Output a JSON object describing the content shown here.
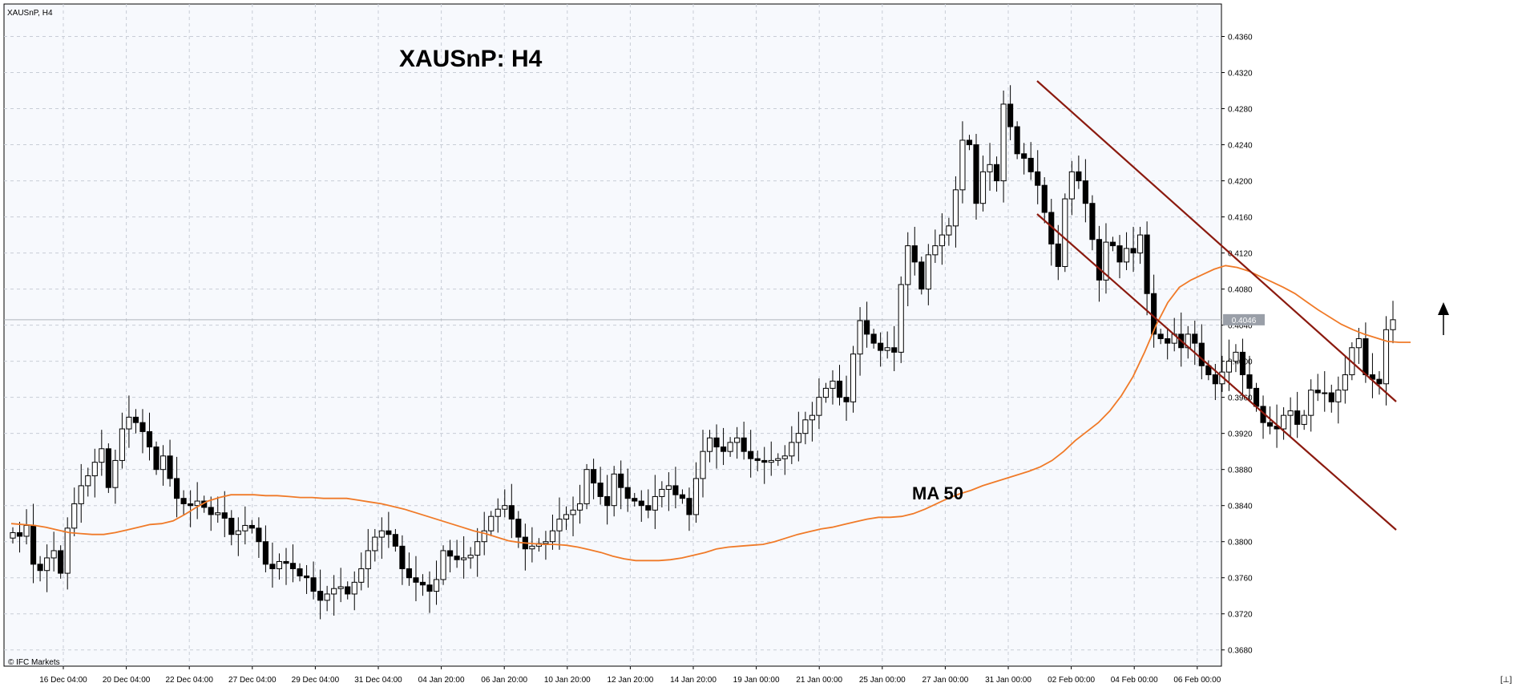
{
  "window": {
    "symbol_label": "XAUSnP, H4",
    "corner_glyph": "[⊥]",
    "brand": "© IFC Markets"
  },
  "colors": {
    "background": "#ffffff",
    "plot_background": "#f7f9fd",
    "grid": "#c8cdd6",
    "ma_line": "#f07a28",
    "channel": "#8b1a0f",
    "current_price_line": "#b0b4bb",
    "current_price_tag": "#9a9fa8",
    "candle_body_up": "#ffffff",
    "candle_body_down": "#000000"
  },
  "chart_data": {
    "type": "candlestick",
    "title": "XAUSnP: H4",
    "symbol": "XAUSnP",
    "timeframe": "H4",
    "x_tick_labels": [
      "16 Dec 04:00",
      "20 Dec 04:00",
      "22 Dec 04:00",
      "27 Dec 04:00",
      "29 Dec 04:00",
      "31 Dec 04:00",
      "04 Jan 20:00",
      "06 Jan 20:00",
      "10 Jan 20:00",
      "12 Jan 20:00",
      "14 Jan 20:00",
      "19 Jan 00:00",
      "21 Jan 00:00",
      "25 Jan 00:00",
      "27 Jan 00:00",
      "31 Jan 00:00",
      "02 Feb 00:00",
      "04 Feb 00:00",
      "06 Feb 00:00"
    ],
    "y_tick_labels": [
      "0.4360",
      "0.4320",
      "0.4280",
      "0.4240",
      "0.4200",
      "0.4160",
      "0.4120",
      "0.4080",
      "0.4040",
      "0.4000",
      "0.3960",
      "0.3920",
      "0.3880",
      "0.3840",
      "0.3800",
      "0.3760",
      "0.3720",
      "0.3680"
    ],
    "ylim": [
      0.3662,
      0.4396
    ],
    "grid": true,
    "current_price": 0.4046,
    "current_price_label": "0.4046",
    "ma_label": "MA 50",
    "indicators": [
      "MA 50",
      "descending channel",
      "up arrow"
    ],
    "price_path": [
      0.381,
      0.3806,
      0.3818,
      0.3775,
      0.3768,
      0.3782,
      0.379,
      0.3765,
      0.3815,
      0.3842,
      0.3862,
      0.3873,
      0.3888,
      0.3903,
      0.386,
      0.389,
      0.3925,
      0.3938,
      0.3932,
      0.3922,
      0.3905,
      0.388,
      0.3895,
      0.387,
      0.3848,
      0.3842,
      0.384,
      0.3845,
      0.3838,
      0.383,
      0.3832,
      0.3826,
      0.3808,
      0.3812,
      0.3818,
      0.3815,
      0.38,
      0.3775,
      0.377,
      0.3778,
      0.3776,
      0.377,
      0.3762,
      0.376,
      0.3745,
      0.3735,
      0.3742,
      0.3748,
      0.375,
      0.3742,
      0.3755,
      0.377,
      0.379,
      0.3805,
      0.3812,
      0.3808,
      0.3795,
      0.377,
      0.376,
      0.3755,
      0.3752,
      0.3745,
      0.3758,
      0.379,
      0.3784,
      0.378,
      0.3782,
      0.3785,
      0.38,
      0.3812,
      0.3828,
      0.3836,
      0.384,
      0.3825,
      0.3805,
      0.3792,
      0.3795,
      0.3798,
      0.38,
      0.3812,
      0.3825,
      0.383,
      0.3835,
      0.3842,
      0.388,
      0.3865,
      0.385,
      0.384,
      0.3875,
      0.386,
      0.3848,
      0.3845,
      0.384,
      0.3835,
      0.385,
      0.3858,
      0.3862,
      0.3852,
      0.3848,
      0.383,
      0.387,
      0.39,
      0.3915,
      0.3905,
      0.39,
      0.391,
      0.3915,
      0.39,
      0.3892,
      0.389,
      0.3888,
      0.389,
      0.3892,
      0.3895,
      0.391,
      0.392,
      0.3935,
      0.394,
      0.396,
      0.397,
      0.3978,
      0.396,
      0.3955,
      0.4008,
      0.4045,
      0.403,
      0.402,
      0.4012,
      0.4015,
      0.401,
      0.4085,
      0.4128,
      0.411,
      0.408,
      0.4118,
      0.4128,
      0.414,
      0.415,
      0.419,
      0.4245,
      0.424,
      0.4175,
      0.421,
      0.4218,
      0.42,
      0.4285,
      0.426,
      0.423,
      0.4225,
      0.421,
      0.4195,
      0.4165,
      0.413,
      0.4105,
      0.418,
      0.421,
      0.42,
      0.4175,
      0.4135,
      0.409,
      0.4132,
      0.4128,
      0.411,
      0.4125,
      0.412,
      0.414,
      0.4075,
      0.403,
      0.4025,
      0.402,
      0.403,
      0.4015,
      0.403,
      0.402,
      0.3995,
      0.3985,
      0.3975,
      0.3988,
      0.4,
      0.401,
      0.3985,
      0.397,
      0.395,
      0.3932,
      0.3928,
      0.3925,
      0.394,
      0.3945,
      0.393,
      0.394,
      0.3968,
      0.3965,
      0.3965,
      0.3955,
      0.3968,
      0.3985,
      0.4015,
      0.4025,
      0.3985,
      0.398,
      0.3975,
      0.4035,
      0.4046
    ],
    "ma50_path": [
      0.382,
      0.3819,
      0.3818,
      0.3816,
      0.3813,
      0.381,
      0.3809,
      0.3808,
      0.3808,
      0.381,
      0.3813,
      0.3816,
      0.3819,
      0.382,
      0.3823,
      0.383,
      0.3838,
      0.3845,
      0.3849,
      0.3852,
      0.3852,
      0.3852,
      0.3851,
      0.3851,
      0.385,
      0.3849,
      0.3849,
      0.3848,
      0.3848,
      0.3848,
      0.3846,
      0.3844,
      0.3842,
      0.3839,
      0.3836,
      0.3832,
      0.3828,
      0.3824,
      0.382,
      0.3816,
      0.3812,
      0.3809,
      0.3805,
      0.3801,
      0.3799,
      0.3798,
      0.3797,
      0.3797,
      0.3796,
      0.3794,
      0.3791,
      0.3788,
      0.3784,
      0.3781,
      0.3779,
      0.3779,
      0.3779,
      0.378,
      0.3782,
      0.3785,
      0.3788,
      0.3792,
      0.3794,
      0.3795,
      0.3796,
      0.3797,
      0.38,
      0.3804,
      0.3808,
      0.3811,
      0.3814,
      0.3816,
      0.3819,
      0.3822,
      0.3825,
      0.3827,
      0.3827,
      0.3828,
      0.3831,
      0.3836,
      0.3842,
      0.3848,
      0.3853,
      0.3857,
      0.3862,
      0.3866,
      0.387,
      0.3874,
      0.3878,
      0.3883,
      0.389,
      0.39,
      0.3912,
      0.3922,
      0.3932,
      0.3945,
      0.3962,
      0.3983,
      0.401,
      0.404,
      0.4065,
      0.4082,
      0.409,
      0.4096,
      0.4102,
      0.4106,
      0.4104,
      0.41,
      0.4094,
      0.4088,
      0.4082,
      0.4075,
      0.4066,
      0.4057,
      0.4049,
      0.4041,
      0.4035,
      0.403,
      0.4026,
      0.4022,
      0.4021,
      0.4021
    ]
  }
}
